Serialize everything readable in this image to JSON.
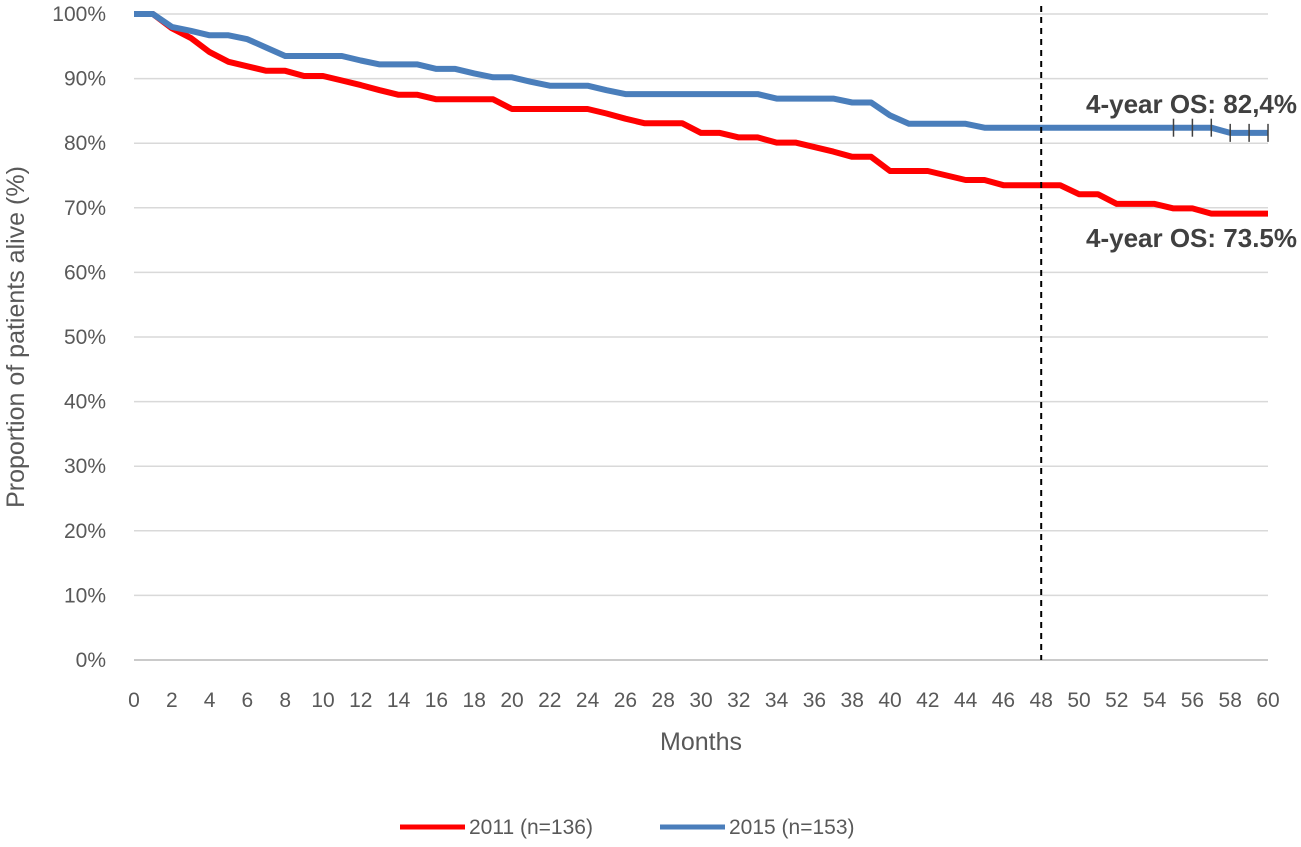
{
  "chart_data": {
    "type": "line",
    "step": true,
    "title": "",
    "xlabel": "Months",
    "ylabel": "Proportion of patients alive (%)",
    "xlim": [
      0,
      60
    ],
    "ylim": [
      0,
      100
    ],
    "x_ticks": [
      0,
      2,
      4,
      6,
      8,
      10,
      12,
      14,
      16,
      18,
      20,
      22,
      24,
      26,
      28,
      30,
      32,
      34,
      36,
      38,
      40,
      42,
      44,
      46,
      48,
      50,
      52,
      54,
      56,
      58,
      60
    ],
    "x_tick_labels": [
      "0",
      "2",
      "4",
      "6",
      "8",
      "10",
      "12",
      "14",
      "16",
      "18",
      "20",
      "22",
      "24",
      "26",
      "28",
      "30",
      "32",
      "34",
      "36",
      "38",
      "40",
      "42",
      "44",
      "46",
      "48",
      "50",
      "52",
      "54",
      "56",
      "58",
      "60"
    ],
    "y_ticks": [
      0,
      10,
      20,
      30,
      40,
      50,
      60,
      70,
      80,
      90,
      100
    ],
    "y_tick_labels": [
      "0%",
      "10%",
      "20%",
      "30%",
      "40%",
      "50%",
      "60%",
      "70%",
      "80%",
      "90%",
      "100%"
    ],
    "grid": "horizontal",
    "legend_position": "bottom",
    "series": [
      {
        "name": "2011 (n=136)",
        "color": "#ff0000",
        "x": [
          0,
          1,
          2,
          3,
          4,
          5,
          6,
          7,
          8,
          9,
          10,
          11,
          12,
          13,
          14,
          15,
          16,
          17,
          18,
          19,
          20,
          21,
          22,
          23,
          24,
          25,
          26,
          27,
          28,
          29,
          30,
          31,
          32,
          33,
          34,
          35,
          36,
          37,
          38,
          39,
          40,
          41,
          42,
          43,
          44,
          45,
          46,
          47,
          48,
          49,
          50,
          51,
          52,
          53,
          54,
          55,
          56,
          57,
          58,
          59,
          60
        ],
        "y": [
          100,
          100,
          97.8,
          96.3,
          94.1,
          92.6,
          91.9,
          91.2,
          91.2,
          90.4,
          90.4,
          89.7,
          89,
          88.2,
          87.5,
          87.5,
          86.8,
          86.8,
          86.8,
          86.8,
          85.3,
          85.3,
          85.3,
          85.3,
          85.3,
          84.6,
          83.8,
          83.1,
          83.1,
          83.1,
          81.6,
          81.6,
          80.9,
          80.9,
          80.1,
          80.1,
          79.4,
          78.7,
          77.9,
          77.9,
          75.7,
          75.7,
          75.7,
          75,
          74.3,
          74.3,
          73.5,
          73.5,
          73.5,
          73.5,
          72.1,
          72.1,
          70.6,
          70.6,
          70.6,
          69.9,
          69.9,
          69.1,
          69.1,
          69.1,
          69.1
        ]
      },
      {
        "name": "2015 (n=153)",
        "color": "#4a7ebb",
        "x": [
          0,
          1,
          2,
          3,
          4,
          5,
          6,
          7,
          8,
          9,
          10,
          11,
          12,
          13,
          14,
          15,
          16,
          17,
          18,
          19,
          20,
          21,
          22,
          23,
          24,
          25,
          26,
          27,
          28,
          29,
          30,
          31,
          32,
          33,
          34,
          35,
          36,
          37,
          38,
          39,
          40,
          41,
          42,
          43,
          44,
          45,
          46,
          47,
          48,
          49,
          50,
          51,
          52,
          53,
          54,
          55,
          56,
          57,
          58,
          59,
          60
        ],
        "y": [
          100,
          100,
          98,
          97.4,
          96.7,
          96.7,
          96.1,
          94.8,
          93.5,
          93.5,
          93.5,
          93.5,
          92.8,
          92.2,
          92.2,
          92.2,
          91.5,
          91.5,
          90.8,
          90.2,
          90.2,
          89.5,
          88.9,
          88.9,
          88.9,
          88.2,
          87.6,
          87.6,
          87.6,
          87.6,
          87.6,
          87.6,
          87.6,
          87.6,
          86.9,
          86.9,
          86.9,
          86.9,
          86.3,
          86.3,
          84.3,
          83,
          83,
          83,
          83,
          82.4,
          82.4,
          82.4,
          82.4,
          82.4,
          82.4,
          82.4,
          82.4,
          82.4,
          82.4,
          82.4,
          82.4,
          82.4,
          81.6,
          81.6,
          81.6
        ],
        "censor_x": [
          55,
          56,
          57,
          58,
          59,
          60
        ]
      }
    ],
    "reference_line": {
      "x": 48,
      "style": "dashed",
      "color": "#000000"
    },
    "annotations": [
      {
        "text": "4-year OS: 82,4%",
        "series": "2015 (n=153)"
      },
      {
        "text": "4-year OS: 73.5%",
        "series": "2011 (n=136)"
      }
    ]
  }
}
